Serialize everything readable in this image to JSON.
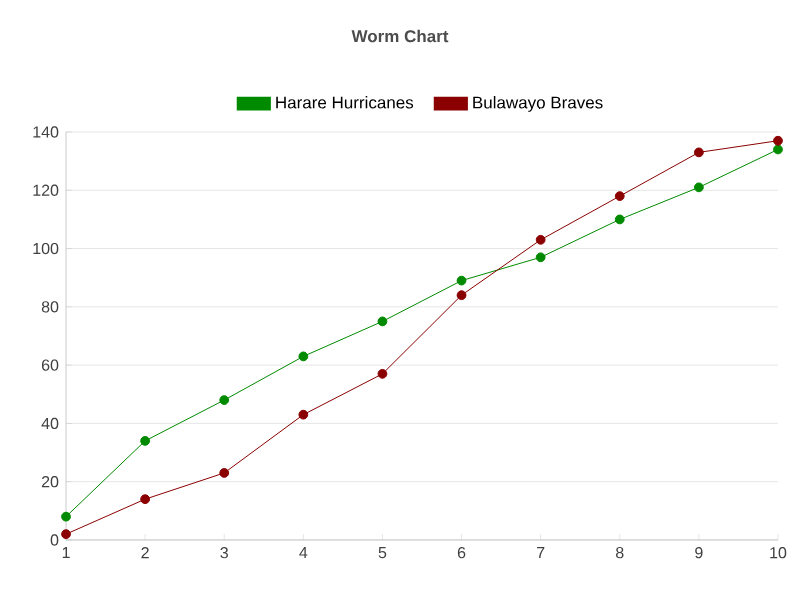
{
  "chart_data": {
    "type": "line",
    "title": "Worm Chart",
    "x": [
      1,
      2,
      3,
      4,
      5,
      6,
      7,
      8,
      9,
      10
    ],
    "series": [
      {
        "name": "Harare Hurricanes",
        "color": "#008a00",
        "values": [
          8,
          34,
          48,
          63,
          75,
          89,
          97,
          110,
          121,
          134
        ]
      },
      {
        "name": "Bulawayo Braves",
        "color": "#8b0000",
        "values": [
          2,
          14,
          23,
          43,
          57,
          84,
          103,
          118,
          133,
          137
        ]
      }
    ],
    "xlim": [
      1,
      10
    ],
    "xticks": [
      1,
      2,
      3,
      4,
      5,
      6,
      7,
      8,
      9,
      10
    ],
    "ylim": [
      0,
      140
    ],
    "yticks": [
      0,
      20,
      40,
      60,
      80,
      100,
      120,
      140
    ],
    "grid": "y",
    "legend": "top",
    "marker": "circle",
    "line_style": "solid"
  }
}
